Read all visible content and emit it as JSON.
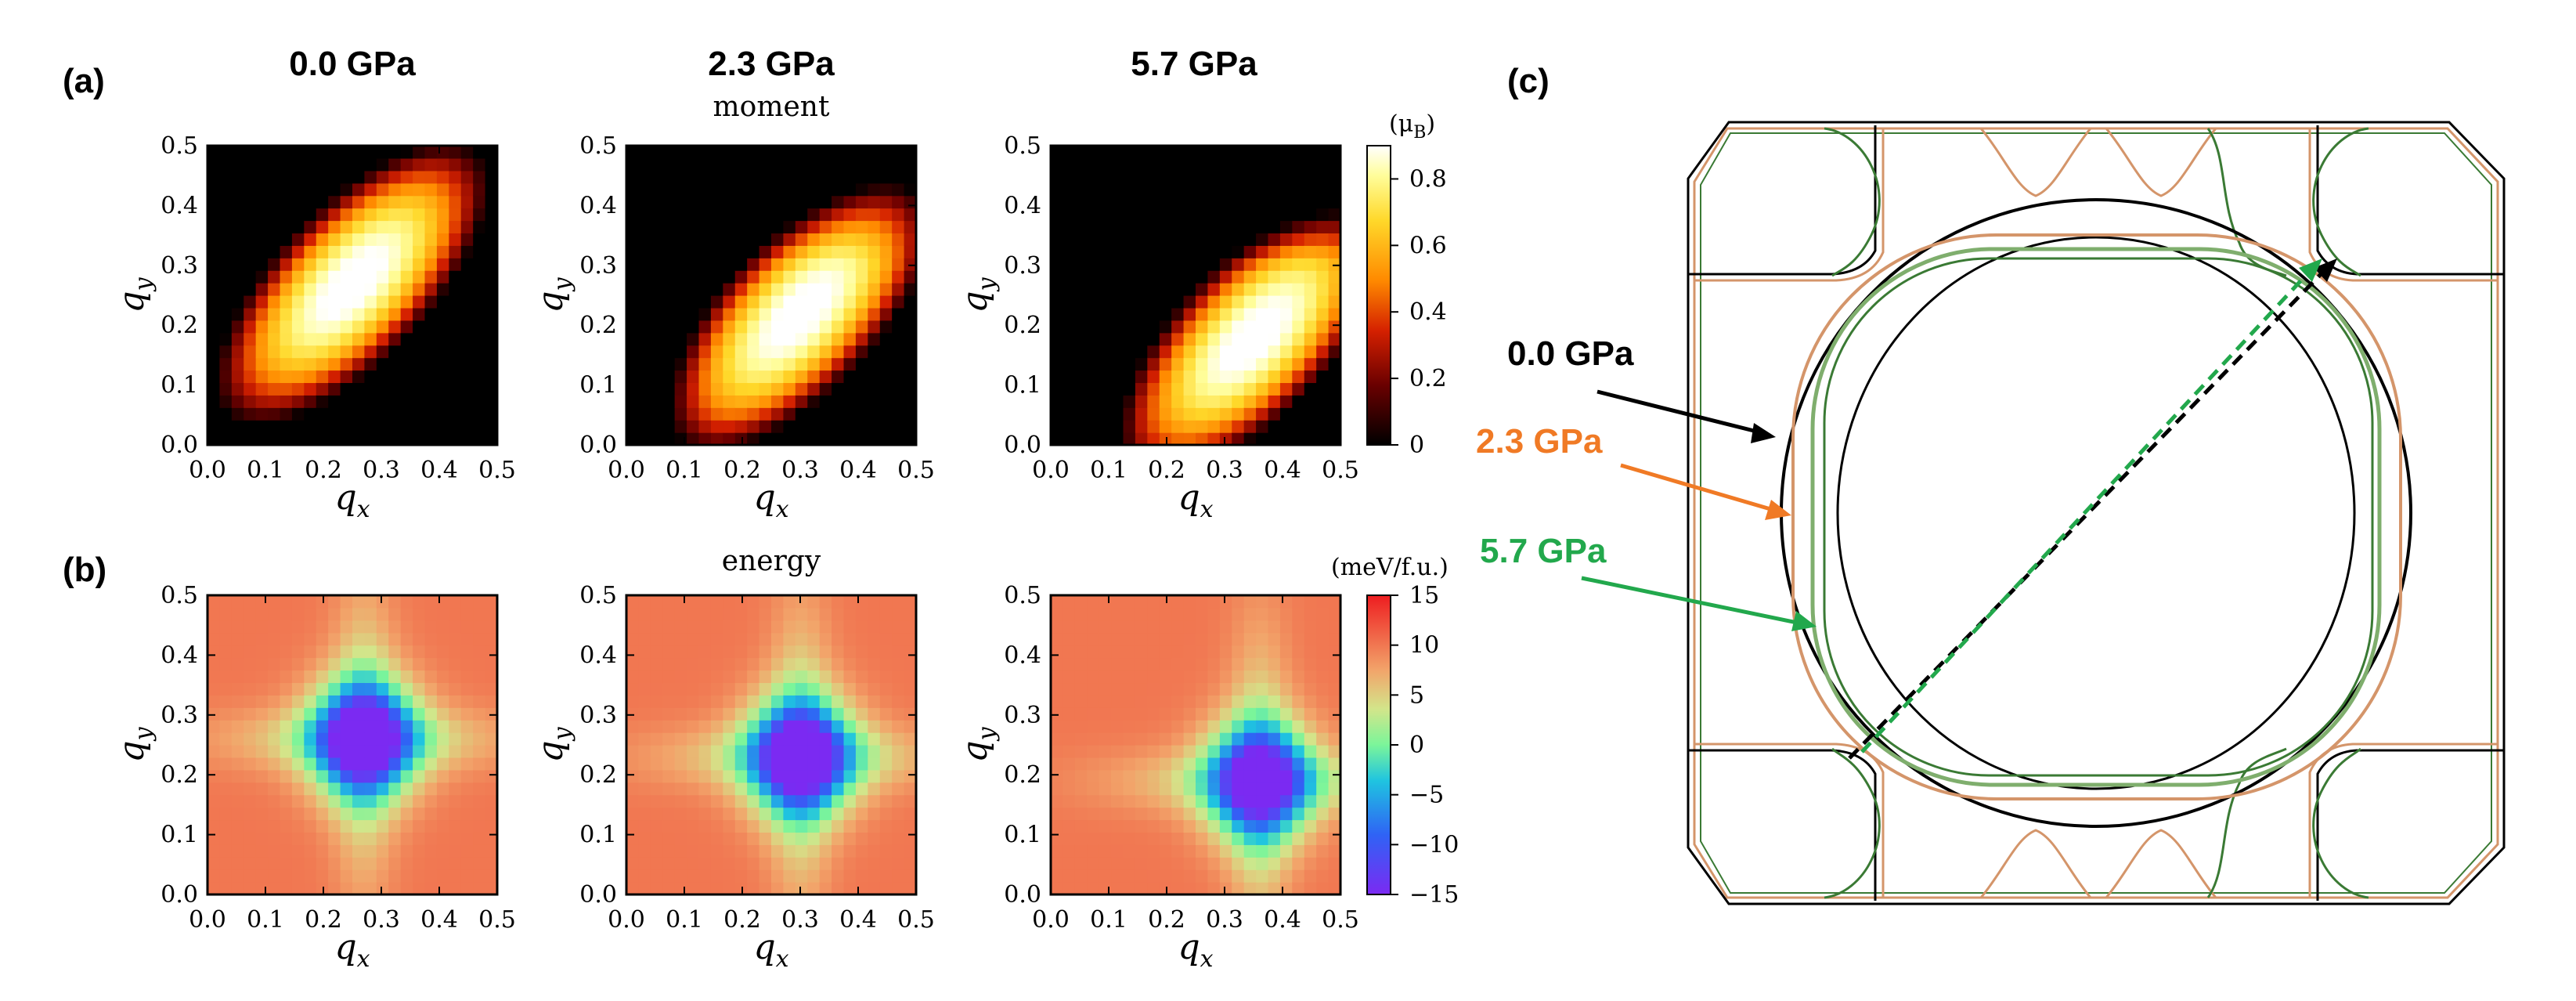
{
  "colors": {
    "p0": "#000000",
    "p23": "#f07a25",
    "p57": "#22a84c",
    "fs_p23": "#d4956a",
    "fs_p57": "#3a7a34",
    "fs_p57_light": "#7fae6d"
  },
  "panel_labels": {
    "a": "(a)",
    "b": "(b)",
    "c": "(c)"
  },
  "pressures": [
    "0.0 GPa",
    "2.3 GPa",
    "5.7 GPa"
  ],
  "row_titles": {
    "moment": "moment",
    "energy": "energy"
  },
  "axis": {
    "xlabel": "q",
    "xsub": "x",
    "ylabel": "q",
    "ysub": "y",
    "ticks": [
      "0.0",
      "0.1",
      "0.2",
      "0.3",
      "0.4",
      "0.5"
    ]
  },
  "colorbars": {
    "moment": {
      "unit_open": "(μ",
      "unit_sub": "B",
      "unit_close": ")",
      "ticks": [
        "0",
        "0.2",
        "0.4",
        "0.6",
        "0.8"
      ]
    },
    "energy": {
      "unit": "(meV/f.u.)",
      "ticks": [
        "15",
        "10",
        "5",
        "0",
        "−5",
        "−10",
        "−15"
      ]
    }
  },
  "legend": [
    {
      "label": "0.0 GPa",
      "color_key": "p0"
    },
    {
      "label": "2.3 GPa",
      "color_key": "p23"
    },
    {
      "label": "5.7 GPa",
      "color_key": "p57"
    }
  ],
  "chart_data": [
    {
      "type": "heatmap",
      "name": "moment",
      "x_range": [
        0,
        0.5
      ],
      "y_range": [
        0,
        0.5
      ],
      "value_range": [
        0,
        0.9
      ],
      "grid_size": 24,
      "panels": [
        {
          "pressure": "0.0 GPa",
          "peak_q": [
            0.25,
            0.27
          ]
        },
        {
          "pressure": "2.3 GPa",
          "peak_q": [
            0.3,
            0.22
          ]
        },
        {
          "pressure": "5.7 GPa",
          "peak_q": [
            0.35,
            0.18
          ]
        }
      ]
    },
    {
      "type": "heatmap",
      "name": "energy",
      "x_range": [
        0,
        0.5
      ],
      "y_range": [
        0,
        0.5
      ],
      "value_range": [
        -15,
        15
      ],
      "grid_size": 24,
      "panels": [
        {
          "pressure": "0.0 GPa",
          "min_q": [
            0.27,
            0.26
          ],
          "min_value": -15
        },
        {
          "pressure": "2.3 GPa",
          "min_q": [
            0.3,
            0.23
          ],
          "min_value": -15
        },
        {
          "pressure": "5.7 GPa",
          "min_q": [
            0.36,
            0.19
          ],
          "min_value": -13
        }
      ]
    }
  ]
}
